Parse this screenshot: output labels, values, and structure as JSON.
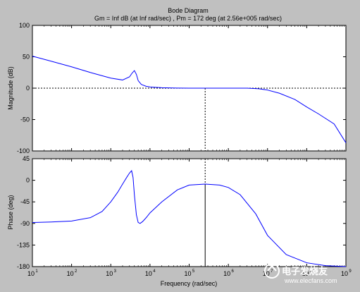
{
  "chart_data": [
    {
      "type": "line",
      "panel": "magnitude",
      "title": "Bode Diagram",
      "subtitle": "Gm = Inf dB (at Inf rad/sec) ,  Pm = 172 deg (at 2.56e+005 rad/sec)",
      "ylabel": "Magnitude (dB)",
      "xlabel": "",
      "xscale": "log",
      "xlim": [
        10,
        1000000000
      ],
      "ylim": [
        -100,
        100
      ],
      "yticks": [
        "100",
        "50",
        "0",
        "-50",
        "-100"
      ],
      "yticks_values": [
        100,
        50,
        0,
        -50,
        -100
      ],
      "grid": false,
      "color": "#0000ff",
      "series": [
        {
          "x": [
            10,
            30,
            100,
            300,
            1000,
            2000,
            3000,
            3500,
            4000,
            4500,
            5000,
            6000,
            8000,
            10000,
            20000,
            50000,
            100000,
            256000,
            1000000,
            3000000,
            6000000,
            10000000,
            20000000,
            50000000,
            100000000,
            200000000,
            500000000,
            1000000000
          ],
          "y": [
            51,
            43,
            34,
            25,
            16,
            13,
            18,
            24,
            28,
            22,
            12,
            6,
            3,
            2,
            0.7,
            0.2,
            0,
            0,
            0,
            0,
            -1,
            -3,
            -8,
            -18,
            -30,
            -41,
            -57,
            -87
          ]
        }
      ],
      "reference_lines": {
        "y_value": 0,
        "x_value": 256000
      }
    },
    {
      "type": "line",
      "panel": "phase",
      "title": "",
      "xlabel": "Frequency  (rad/sec)",
      "ylabel": "Phase (deg)",
      "xscale": "log",
      "xlim": [
        10,
        1000000000
      ],
      "ylim": [
        -180,
        45
      ],
      "xticks": [
        "10",
        "10",
        "10",
        "10",
        "10",
        "10",
        "10",
        "10",
        "10"
      ],
      "xticks_exp": [
        "1",
        "2",
        "3",
        "4",
        "5",
        "6",
        "7",
        "8",
        "9"
      ],
      "xticks_values": [
        10,
        100,
        1000,
        10000,
        100000,
        1000000,
        10000000,
        100000000,
        1000000000
      ],
      "yticks": [
        "45",
        "0",
        "-45",
        "-90",
        "-135",
        "-180"
      ],
      "yticks_values": [
        45,
        0,
        -45,
        -90,
        -135,
        -180
      ],
      "grid": false,
      "color": "#0000ff",
      "series": [
        {
          "x": [
            10,
            30,
            100,
            300,
            600,
            1000,
            1500,
            2000,
            2500,
            3000,
            3400,
            3700,
            4000,
            4500,
            5000,
            5600,
            6500,
            8000,
            10000,
            20000,
            50000,
            100000,
            256000,
            600000,
            1000000,
            2000000,
            5000000,
            10000000,
            30000000,
            100000000,
            300000000,
            1000000000
          ],
          "y": [
            -88,
            -87,
            -85,
            -78,
            -65,
            -45,
            -25,
            -8,
            5,
            15,
            20,
            6,
            -30,
            -72,
            -88,
            -90,
            -86,
            -78,
            -68,
            -45,
            -20,
            -10,
            -8,
            -10,
            -15,
            -30,
            -70,
            -115,
            -155,
            -172,
            -178,
            -180
          ]
        }
      ],
      "reference_lines": {
        "y_value": -180,
        "x_value": 256000
      }
    }
  ],
  "watermark": {
    "logo_letters": "电子发烧友",
    "url": "www.elecfans.com"
  }
}
